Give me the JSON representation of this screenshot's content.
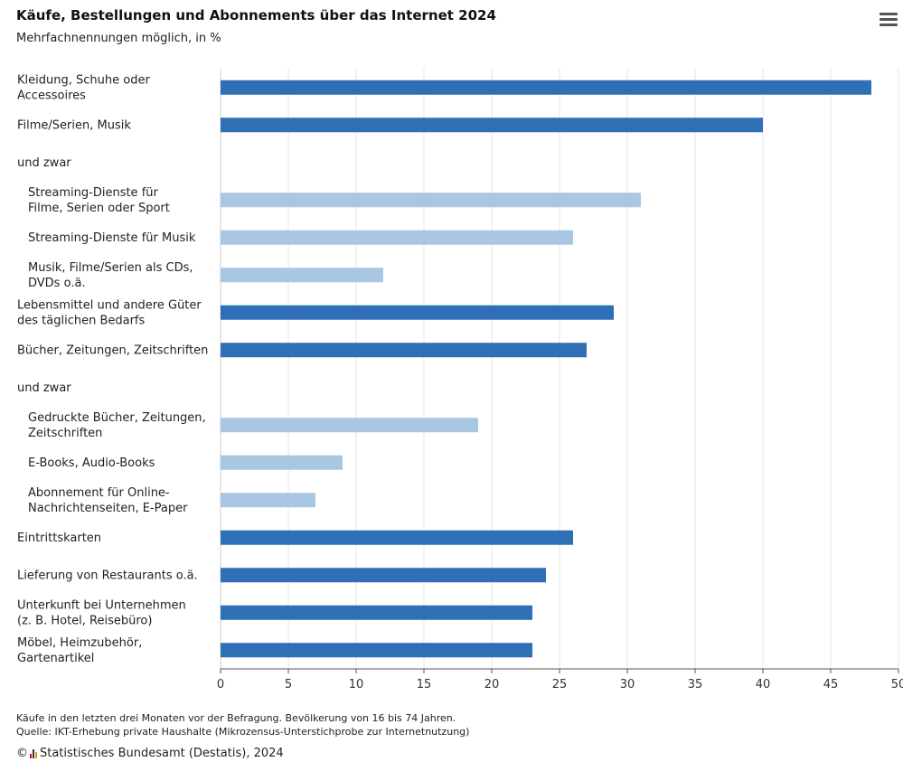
{
  "title": "Käufe, Bestellungen und Abonnements über das Internet 2024",
  "subtitle": "Mehrfachnennungen möglich, in %",
  "menu_icon": "hamburger-menu-icon",
  "colors": {
    "main": "#2e6fb5",
    "sub": "#a9c6e3",
    "grid": "#e4e4e4",
    "axis": "#555555"
  },
  "chart_data": {
    "type": "bar",
    "orientation": "horizontal",
    "categories": [
      [
        "Kleidung, Schuhe oder",
        "Accessoires"
      ],
      [
        "Filme/Serien, Musik"
      ],
      [
        "und zwar"
      ],
      [
        "Streaming-Dienste für",
        "Filme, Serien oder Sport"
      ],
      [
        "Streaming-Dienste für Musik"
      ],
      [
        "Musik, Filme/Serien als CDs,",
        "DVDs o.ä."
      ],
      [
        "Lebensmittel und andere Güter",
        "des täglichen Bedarfs"
      ],
      [
        "Bücher, Zeitungen, Zeitschriften"
      ],
      [
        "und zwar"
      ],
      [
        "Gedruckte Bücher, Zeitungen,",
        "Zeitschriften"
      ],
      [
        "E-Books, Audio-Books"
      ],
      [
        "Abonnement für Online-",
        "Nachrichtenseiten, E-Paper"
      ],
      [
        "Eintrittskarten"
      ],
      [
        "Lieferung von Restaurants o.ä."
      ],
      [
        "Unterkunft bei Unternehmen",
        "(z. B. Hotel, Reisebüro)"
      ],
      [
        "Möbel, Heimzubehör,",
        "Gartenartikel"
      ]
    ],
    "values": [
      48,
      40,
      null,
      31,
      26,
      12,
      29,
      27,
      null,
      19,
      9,
      7,
      26,
      24,
      23,
      23
    ],
    "level": [
      "main",
      "main",
      "sub",
      "sub",
      "sub",
      "sub",
      "main",
      "main",
      "sub",
      "sub",
      "sub",
      "sub",
      "main",
      "main",
      "main",
      "main"
    ],
    "xlim": [
      0,
      50
    ],
    "xticks": [
      0,
      5,
      10,
      15,
      20,
      25,
      30,
      35,
      40,
      45,
      50
    ],
    "grid": true
  },
  "footnote": "Käufe in den letzten drei Monaten vor der Befragung. Bevölkerung von 16 bis 74 Jahren.",
  "source": "Quelle: IKT-Erhebung private Haushalte (Mikrozensus-Unterstichprobe zur Internetnutzung)",
  "copyright_symbol": "©",
  "logo_icon": "destatis-logo-icon",
  "credit": "Statistisches Bundesamt (Destatis), 2024"
}
